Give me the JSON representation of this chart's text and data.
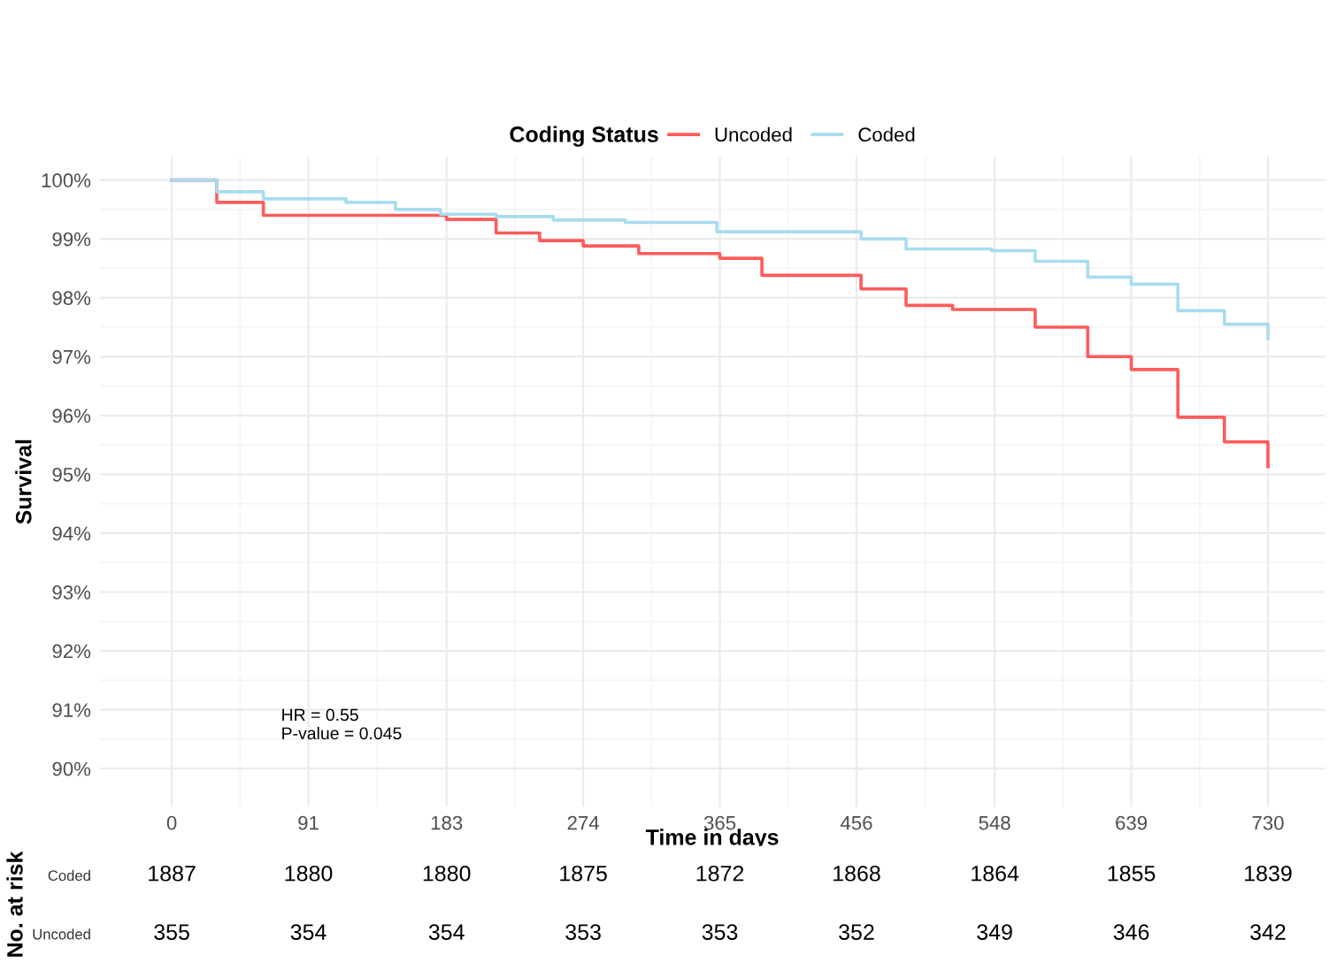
{
  "chart_data": [
    {
      "type": "step",
      "xlabel": "Time in days",
      "ylabel": "Survival",
      "legend_title": "Coding Status",
      "legend": "top",
      "grid": true,
      "series": [
        {
          "name": "Uncoded",
          "color": "#ff5b5b",
          "x": [
            0,
            30,
            61,
            183,
            216,
            245,
            274,
            311,
            365,
            393,
            459,
            489,
            520,
            575,
            610,
            639,
            670,
            701,
            730
          ],
          "values": [
            100,
            99.62,
            99.4,
            99.33,
            99.1,
            98.97,
            98.88,
            98.75,
            98.67,
            98.38,
            98.15,
            97.87,
            97.8,
            97.5,
            97.0,
            96.78,
            95.97,
            95.55,
            95.13
          ]
        },
        {
          "name": "Coded",
          "color": "#a8dcee",
          "x": [
            0,
            30,
            61,
            116,
            149,
            179,
            216,
            254,
            302,
            363,
            459,
            489,
            546,
            575,
            610,
            639,
            670,
            701,
            730
          ],
          "values": [
            100,
            99.8,
            99.68,
            99.62,
            99.5,
            99.42,
            99.38,
            99.32,
            99.28,
            99.12,
            99.0,
            98.83,
            98.8,
            98.62,
            98.35,
            98.23,
            97.78,
            97.55,
            97.3
          ]
        }
      ],
      "xlim": [
        -48,
        768
      ],
      "ylim": [
        89.35,
        100.4
      ],
      "xticks": [
        0,
        91,
        183,
        274,
        365,
        456,
        548,
        639,
        730
      ],
      "yticks": [
        {
          "value": 90,
          "label": "90%"
        },
        {
          "value": 91,
          "label": "91%"
        },
        {
          "value": 92,
          "label": "92%"
        },
        {
          "value": 93,
          "label": "93%"
        },
        {
          "value": 94,
          "label": "94%"
        },
        {
          "value": 95,
          "label": "95%"
        },
        {
          "value": 96,
          "label": "96%"
        },
        {
          "value": 97,
          "label": "97%"
        },
        {
          "value": 98,
          "label": "98%"
        },
        {
          "value": 99,
          "label": "99%"
        },
        {
          "value": 100,
          "label": "100%"
        }
      ],
      "annotations": [
        "HR = 0.55\nP-value = 0.045"
      ]
    },
    {
      "type": "heatmap",
      "tick_labels": "y",
      "data_labels": true,
      "ylabel": "No. at risk",
      "categories": [
        "0",
        "91",
        "183",
        "274",
        "365",
        "456",
        "548",
        "639",
        "730"
      ],
      "y_categories": [
        "Coded",
        "Uncoded"
      ],
      "cells": [
        [
          1887,
          1880,
          1880,
          1875,
          1872,
          1868,
          1864,
          1855,
          1839
        ],
        [
          355,
          354,
          354,
          353,
          353,
          352,
          349,
          346,
          342
        ]
      ]
    }
  ]
}
